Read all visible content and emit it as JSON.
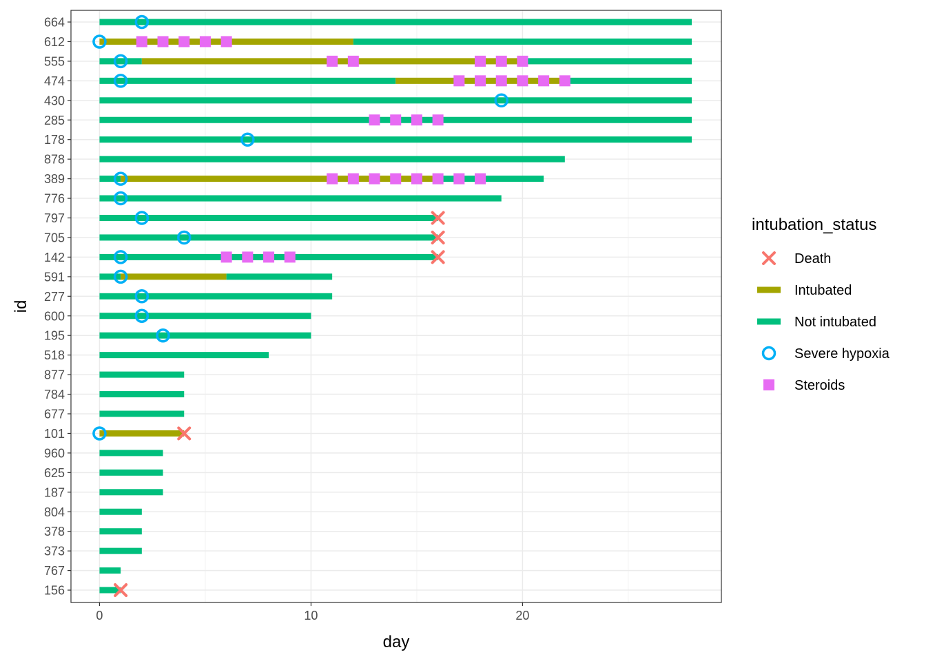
{
  "chart_data": {
    "type": "swimmer",
    "xlabel": "day",
    "ylabel": "id",
    "xlim": [
      -1.35,
      29.4
    ],
    "x_ticks": [
      0,
      10,
      20
    ],
    "grid": true,
    "legend_position": "right",
    "legend_title": "intubation_status",
    "legend": [
      {
        "key": "death",
        "label": "Death",
        "color": "#F8766D",
        "shape": "x"
      },
      {
        "key": "intubated",
        "label": "Intubated",
        "color": "#A3A500",
        "shape": "bar"
      },
      {
        "key": "not_intubated",
        "label": "Not intubated",
        "color": "#00BF7D",
        "shape": "bar"
      },
      {
        "key": "hypoxia",
        "label": "Severe hypoxia",
        "color": "#00B0F6",
        "shape": "open-circle"
      },
      {
        "key": "steroids",
        "label": "Steroids",
        "color": "#E76BF3",
        "shape": "square"
      }
    ],
    "ids": [
      "664",
      "612",
      "555",
      "474",
      "430",
      "285",
      "178",
      "878",
      "389",
      "776",
      "797",
      "705",
      "142",
      "591",
      "277",
      "600",
      "195",
      "518",
      "877",
      "784",
      "677",
      "101",
      "960",
      "625",
      "187",
      "804",
      "378",
      "373",
      "767",
      "156"
    ],
    "patients": [
      {
        "id": "664",
        "segments": [
          [
            0,
            28,
            "not_intubated"
          ]
        ],
        "hypoxia": [
          2
        ],
        "steroids": [],
        "death": []
      },
      {
        "id": "612",
        "segments": [
          [
            0,
            12,
            "intubated"
          ],
          [
            12,
            28,
            "not_intubated"
          ]
        ],
        "hypoxia": [
          0
        ],
        "steroids": [
          2,
          3,
          4,
          5,
          6
        ],
        "death": []
      },
      {
        "id": "555",
        "segments": [
          [
            0,
            2,
            "not_intubated"
          ],
          [
            2,
            20,
            "intubated"
          ],
          [
            20,
            28,
            "not_intubated"
          ]
        ],
        "hypoxia": [
          1
        ],
        "steroids": [
          11,
          12,
          18,
          19,
          20
        ],
        "death": []
      },
      {
        "id": "474",
        "segments": [
          [
            0,
            14,
            "not_intubated"
          ],
          [
            14,
            22,
            "intubated"
          ],
          [
            22,
            28,
            "not_intubated"
          ]
        ],
        "hypoxia": [
          1
        ],
        "steroids": [
          17,
          18,
          19,
          20,
          21,
          22
        ],
        "death": []
      },
      {
        "id": "430",
        "segments": [
          [
            0,
            28,
            "not_intubated"
          ]
        ],
        "hypoxia": [
          19
        ],
        "steroids": [],
        "death": []
      },
      {
        "id": "285",
        "segments": [
          [
            0,
            28,
            "not_intubated"
          ]
        ],
        "hypoxia": [],
        "steroids": [
          13,
          14,
          15,
          16
        ],
        "death": []
      },
      {
        "id": "178",
        "segments": [
          [
            0,
            28,
            "not_intubated"
          ]
        ],
        "hypoxia": [
          7
        ],
        "steroids": [],
        "death": []
      },
      {
        "id": "878",
        "segments": [
          [
            0,
            22,
            "not_intubated"
          ]
        ],
        "hypoxia": [],
        "steroids": [],
        "death": []
      },
      {
        "id": "389",
        "segments": [
          [
            0,
            1,
            "not_intubated"
          ],
          [
            1,
            16,
            "intubated"
          ],
          [
            16,
            21,
            "not_intubated"
          ]
        ],
        "hypoxia": [
          1
        ],
        "steroids": [
          11,
          12,
          13,
          14,
          15,
          16,
          17,
          18
        ],
        "death": []
      },
      {
        "id": "776",
        "segments": [
          [
            0,
            19,
            "not_intubated"
          ]
        ],
        "hypoxia": [
          1
        ],
        "steroids": [],
        "death": []
      },
      {
        "id": "797",
        "segments": [
          [
            0,
            16,
            "not_intubated"
          ]
        ],
        "hypoxia": [
          2
        ],
        "steroids": [],
        "death": [
          16
        ]
      },
      {
        "id": "705",
        "segments": [
          [
            0,
            16,
            "not_intubated"
          ]
        ],
        "hypoxia": [
          4
        ],
        "steroids": [],
        "death": [
          16
        ]
      },
      {
        "id": "142",
        "segments": [
          [
            0,
            16,
            "not_intubated"
          ]
        ],
        "hypoxia": [
          1
        ],
        "steroids": [
          6,
          7,
          8,
          9
        ],
        "death": [
          16
        ]
      },
      {
        "id": "591",
        "segments": [
          [
            0,
            1,
            "not_intubated"
          ],
          [
            1,
            6,
            "intubated"
          ],
          [
            6,
            11,
            "not_intubated"
          ]
        ],
        "hypoxia": [
          1
        ],
        "steroids": [],
        "death": []
      },
      {
        "id": "277",
        "segments": [
          [
            0,
            11,
            "not_intubated"
          ]
        ],
        "hypoxia": [
          2
        ],
        "steroids": [],
        "death": []
      },
      {
        "id": "600",
        "segments": [
          [
            0,
            10,
            "not_intubated"
          ]
        ],
        "hypoxia": [
          2
        ],
        "steroids": [],
        "death": []
      },
      {
        "id": "195",
        "segments": [
          [
            0,
            10,
            "not_intubated"
          ]
        ],
        "hypoxia": [
          3
        ],
        "steroids": [],
        "death": []
      },
      {
        "id": "518",
        "segments": [
          [
            0,
            8,
            "not_intubated"
          ]
        ],
        "hypoxia": [],
        "steroids": [],
        "death": []
      },
      {
        "id": "877",
        "segments": [
          [
            0,
            4,
            "not_intubated"
          ]
        ],
        "hypoxia": [],
        "steroids": [],
        "death": []
      },
      {
        "id": "784",
        "segments": [
          [
            0,
            4,
            "not_intubated"
          ]
        ],
        "hypoxia": [],
        "steroids": [],
        "death": []
      },
      {
        "id": "677",
        "segments": [
          [
            0,
            4,
            "not_intubated"
          ]
        ],
        "hypoxia": [],
        "steroids": [],
        "death": []
      },
      {
        "id": "101",
        "segments": [
          [
            0,
            4,
            "intubated"
          ]
        ],
        "hypoxia": [
          0
        ],
        "steroids": [],
        "death": [
          4
        ]
      },
      {
        "id": "960",
        "segments": [
          [
            0,
            3,
            "not_intubated"
          ]
        ],
        "hypoxia": [],
        "steroids": [],
        "death": []
      },
      {
        "id": "625",
        "segments": [
          [
            0,
            3,
            "not_intubated"
          ]
        ],
        "hypoxia": [],
        "steroids": [],
        "death": []
      },
      {
        "id": "187",
        "segments": [
          [
            0,
            3,
            "not_intubated"
          ]
        ],
        "hypoxia": [],
        "steroids": [],
        "death": []
      },
      {
        "id": "804",
        "segments": [
          [
            0,
            2,
            "not_intubated"
          ]
        ],
        "hypoxia": [],
        "steroids": [],
        "death": []
      },
      {
        "id": "378",
        "segments": [
          [
            0,
            2,
            "not_intubated"
          ]
        ],
        "hypoxia": [],
        "steroids": [],
        "death": []
      },
      {
        "id": "373",
        "segments": [
          [
            0,
            2,
            "not_intubated"
          ]
        ],
        "hypoxia": [],
        "steroids": [],
        "death": []
      },
      {
        "id": "767",
        "segments": [
          [
            0,
            1,
            "not_intubated"
          ]
        ],
        "hypoxia": [],
        "steroids": [],
        "death": []
      },
      {
        "id": "156",
        "segments": [
          [
            0,
            1,
            "not_intubated"
          ]
        ],
        "hypoxia": [],
        "steroids": [],
        "death": [
          1
        ]
      }
    ]
  }
}
